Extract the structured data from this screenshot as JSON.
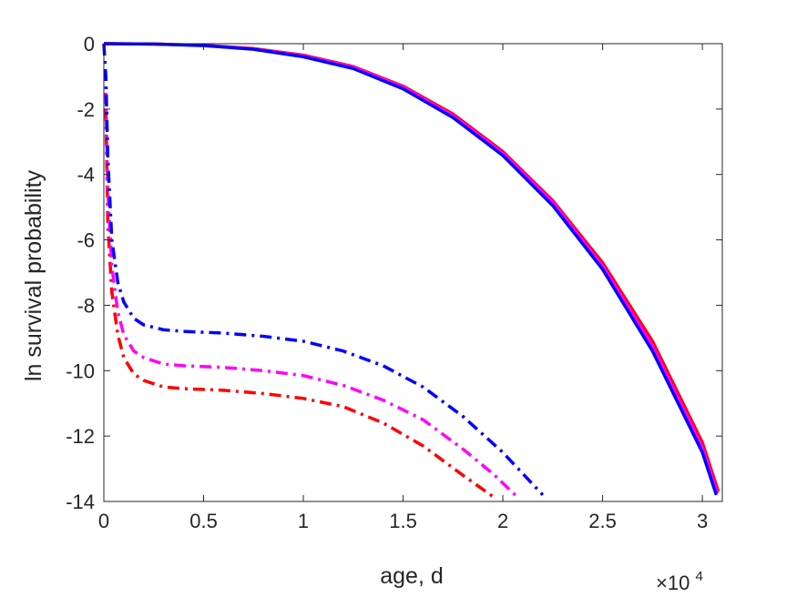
{
  "chart_data": {
    "type": "line",
    "title": "",
    "xlabel": "age, d",
    "ylabel": "ln survival probability",
    "x_exponent_label": {
      "base": "×10",
      "exponent": "4"
    },
    "xlim": [
      0,
      3.1
    ],
    "ylim": [
      -14,
      0
    ],
    "x_ticks": [
      0,
      0.5,
      1,
      1.5,
      2,
      2.5,
      3
    ],
    "x_tick_labels": [
      "0",
      "0.5",
      "1",
      "1.5",
      "2",
      "2.5",
      "3"
    ],
    "y_ticks": [
      0,
      -2,
      -4,
      -6,
      -8,
      -10,
      -12,
      -14
    ],
    "y_tick_labels": [
      "0",
      "-2",
      "-4",
      "-6",
      "-8",
      "-10",
      "-12",
      "-14"
    ],
    "grid": false,
    "legend": "none",
    "series": [
      {
        "color": "#ff0000",
        "style": "solid",
        "x": [
          0,
          0.25,
          0.5,
          0.75,
          1.0,
          1.25,
          1.5,
          1.75,
          2.0,
          2.25,
          2.5,
          2.75,
          3.0,
          3.08
        ],
        "y": [
          0,
          -0.01,
          -0.05,
          -0.15,
          -0.35,
          -0.7,
          -1.3,
          -2.15,
          -3.3,
          -4.8,
          -6.7,
          -9.1,
          -12.2,
          -13.7
        ]
      },
      {
        "color": "#ff00ff",
        "style": "solid",
        "x": [
          0,
          0.25,
          0.5,
          0.75,
          1.0,
          1.25,
          1.5,
          1.75,
          2.0,
          2.25,
          2.5,
          2.75,
          3.0,
          3.075
        ],
        "y": [
          0,
          -0.01,
          -0.05,
          -0.16,
          -0.37,
          -0.72,
          -1.33,
          -2.2,
          -3.35,
          -4.85,
          -6.8,
          -9.25,
          -12.35,
          -13.75
        ]
      },
      {
        "color": "#0000ff",
        "style": "solid",
        "x": [
          0,
          0.25,
          0.5,
          0.75,
          1.0,
          1.25,
          1.5,
          1.75,
          2.0,
          2.25,
          2.5,
          2.75,
          3.0,
          3.07
        ],
        "y": [
          0,
          -0.01,
          -0.06,
          -0.17,
          -0.4,
          -0.76,
          -1.38,
          -2.26,
          -3.42,
          -4.95,
          -6.9,
          -9.4,
          -12.5,
          -13.8
        ]
      },
      {
        "color": "#ff0000",
        "style": "dashdot",
        "x": [
          0.01,
          0.02,
          0.04,
          0.07,
          0.1,
          0.15,
          0.2,
          0.3,
          0.4,
          0.6,
          0.8,
          1.0,
          1.2,
          1.4,
          1.6,
          1.8,
          1.95
        ],
        "y": [
          -2.0,
          -5.5,
          -7.6,
          -8.9,
          -9.6,
          -10.1,
          -10.3,
          -10.5,
          -10.55,
          -10.6,
          -10.7,
          -10.85,
          -11.1,
          -11.6,
          -12.3,
          -13.2,
          -13.85
        ]
      },
      {
        "color": "#ff00ff",
        "style": "dashdot",
        "x": [
          0.01,
          0.02,
          0.04,
          0.07,
          0.1,
          0.15,
          0.2,
          0.3,
          0.4,
          0.6,
          0.8,
          1.0,
          1.2,
          1.4,
          1.6,
          1.8,
          1.95,
          2.07
        ],
        "y": [
          -1.5,
          -4.5,
          -6.8,
          -8.2,
          -8.9,
          -9.4,
          -9.6,
          -9.8,
          -9.85,
          -9.9,
          -10.0,
          -10.15,
          -10.45,
          -10.9,
          -11.5,
          -12.4,
          -13.15,
          -13.85
        ]
      },
      {
        "color": "#0000ff",
        "style": "dashdot",
        "x": [
          0.0,
          0.01,
          0.02,
          0.04,
          0.07,
          0.1,
          0.15,
          0.2,
          0.3,
          0.4,
          0.6,
          0.8,
          1.0,
          1.2,
          1.4,
          1.6,
          1.8,
          2.0,
          2.2
        ],
        "y": [
          0.0,
          -1.0,
          -3.5,
          -6.0,
          -7.3,
          -7.9,
          -8.4,
          -8.6,
          -8.75,
          -8.8,
          -8.85,
          -8.95,
          -9.1,
          -9.4,
          -9.85,
          -10.5,
          -11.4,
          -12.5,
          -13.8
        ]
      }
    ]
  }
}
